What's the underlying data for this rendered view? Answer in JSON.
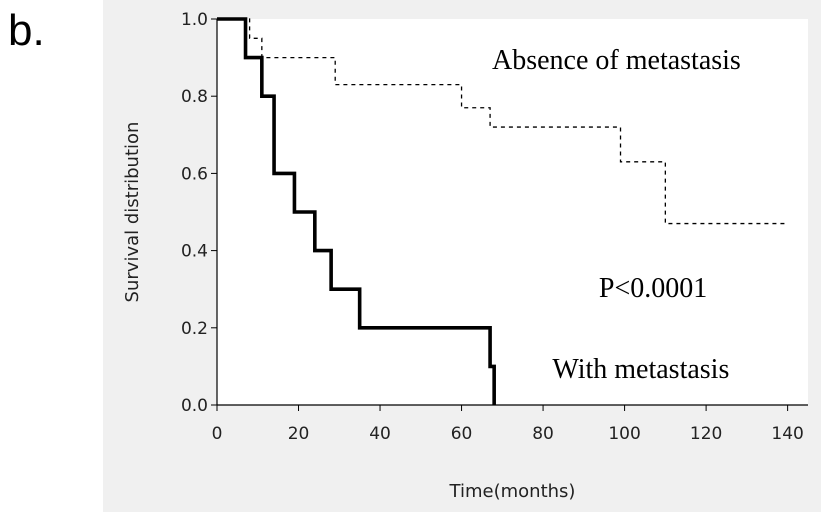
{
  "panel_label": "b.",
  "chart_data": {
    "type": "line",
    "step": true,
    "xlabel": "Time(months)",
    "ylabel": "Survival distribution",
    "xlim": [
      0,
      145
    ],
    "ylim": [
      0,
      1.0
    ],
    "xticks": [
      "0",
      "20",
      "40",
      "60",
      "80",
      "100",
      "120",
      "140"
    ],
    "yticks": [
      "0.0",
      "0.2",
      "0.4",
      "0.6",
      "0.8",
      "1.0"
    ],
    "grid": false,
    "series": [
      {
        "name": "Absence of metastasis",
        "style": "dashed",
        "color": "#000000",
        "x": [
          0,
          8,
          11,
          29,
          60,
          67,
          99,
          110,
          140
        ],
        "y": [
          1.0,
          0.95,
          0.9,
          0.83,
          0.77,
          0.72,
          0.63,
          0.47,
          0.47
        ]
      },
      {
        "name": "With metastasis",
        "style": "solid",
        "color": "#000000",
        "x": [
          0,
          7,
          11,
          14,
          19,
          24,
          28,
          35,
          67,
          68
        ],
        "y": [
          1.0,
          0.9,
          0.8,
          0.6,
          0.5,
          0.4,
          0.3,
          0.2,
          0.1,
          0.0
        ]
      }
    ],
    "annotations": [
      {
        "text": "Absence of metastasis",
        "x": 98,
        "y": 0.87
      },
      {
        "text": "P<0.0001",
        "x": 107,
        "y": 0.28
      },
      {
        "text": "With metastasis",
        "x": 104,
        "y": 0.07
      }
    ]
  }
}
